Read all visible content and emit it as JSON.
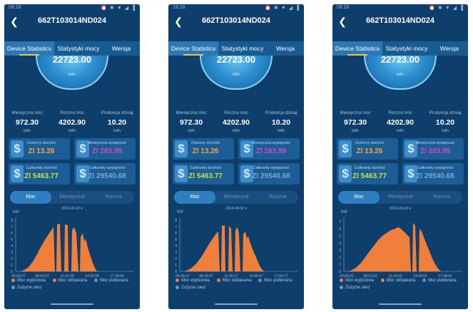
{
  "screens": [
    {
      "status_time": "09:18",
      "status_right": "⏰ ✱ ▼ ◢ ▐",
      "title": "662T103014ND024",
      "tabs": [
        "Device Statistics",
        "Statystyki mocy",
        "Wersja"
      ],
      "gauge": {
        "value": "22723.00",
        "unit": "kWh"
      },
      "stats": [
        {
          "label": "Miesięczna moc",
          "value": "972.30",
          "unit": "kWh"
        },
        {
          "label": "Roczna moc",
          "value": "4202.90",
          "unit": "kWh"
        },
        {
          "label": "Produkcja dzisiaj",
          "value": "10.20",
          "unit": "kWh"
        }
      ],
      "cards": [
        {
          "label": "Dzienny dochód",
          "value": "Zl 13.26"
        },
        {
          "label": "Miesięczna wydajność",
          "value": "Zl 263.99"
        },
        {
          "label": "Całkowity dochód",
          "value": "Zl 5463.77"
        },
        {
          "label": "Całkowity wydajność",
          "value": "Zl 29540.68"
        }
      ],
      "segments": [
        "Moc",
        "Miesięczna",
        "Roczna"
      ],
      "date": "2024-06-02 ▾",
      "chart_unit": "kW",
      "yticks": [
        "0",
        "1",
        "2",
        "3",
        "4",
        "5",
        "6",
        "7",
        "8"
      ],
      "xticks": [
        "05:09:37",
        "08:20:07",
        "11:22:00",
        "14:32:30",
        "17:43:00"
      ],
      "legend": [
        "Moc wyjściowa",
        "Moc oddawana",
        "Moc pobierana",
        "Zużycie sieci"
      ]
    },
    {
      "status_time": "18:18",
      "status_right": "⏰ ✱ ▼ ◢ ▐",
      "title": "662T103014ND024",
      "tabs": [
        "Device Statistics",
        "Statystyki mocy",
        "Wersja"
      ],
      "gauge": {
        "value": "22723.00",
        "unit": "kWh"
      },
      "stats": [
        {
          "label": "Miesięczna moc",
          "value": "972.30",
          "unit": "kWh"
        },
        {
          "label": "Roczna moc",
          "value": "4202.90",
          "unit": "kWh"
        },
        {
          "label": "Produkcja dzisiaj",
          "value": "10.20",
          "unit": "kWh"
        }
      ],
      "cards": [
        {
          "label": "Dzienny dochód",
          "value": "Zl 13.26"
        },
        {
          "label": "Miesięczna wydajność",
          "value": "Zl 263.99"
        },
        {
          "label": "Całkowity dochód",
          "value": "Zl 5463.77"
        },
        {
          "label": "Całkowity wydajność",
          "value": "Zl 29540.68"
        }
      ],
      "segments": [
        "Moc",
        "Miesięczna",
        "Roczna"
      ],
      "date": "2024-06-02 ▾",
      "chart_unit": "kW",
      "yticks": [
        "0",
        "1",
        "2",
        "3",
        "4",
        "5",
        "6",
        "7",
        "8"
      ],
      "xticks": [
        "05:06:47",
        "08:18:47",
        "11:35:17",
        "14:45:47",
        "17:50:17"
      ],
      "legend": [
        "Moc wyjściowa",
        "Moc oddawana",
        "Moc pobierana",
        "Zużycie sieci"
      ]
    },
    {
      "status_time": "09:20",
      "status_right": "⏰ ✱ ▼ ◢ ▐",
      "title": "662T103014ND024",
      "tabs": [
        "Device Statistics",
        "Statystyki mocy",
        "Wersja"
      ],
      "gauge": {
        "value": "22723.00",
        "unit": "kWh"
      },
      "stats": [
        {
          "label": "Miesięczna moc",
          "value": "972.30",
          "unit": "kWh"
        },
        {
          "label": "Roczna moc",
          "value": "4202.90",
          "unit": "kWh"
        },
        {
          "label": "Produkcja dzisiaj",
          "value": "10.20",
          "unit": "kWh"
        }
      ],
      "cards": [
        {
          "label": "Dzienny dochód",
          "value": "Zl 13.26"
        },
        {
          "label": "Miesięczna wydajność",
          "value": "Zl 263.99"
        },
        {
          "label": "Całkowity dochód",
          "value": "Zl 5463.77"
        },
        {
          "label": "Całkowity wydajność",
          "value": "Zl 29540.68"
        }
      ],
      "segments": [
        "Moc",
        "Miesięczna",
        "Roczna"
      ],
      "date": "2024-06-03 ▾",
      "chart_unit": "kW",
      "yticks": [
        "0",
        "1",
        "2",
        "3",
        "4",
        "5",
        "6",
        "7"
      ],
      "xticks": [
        "05:06:02",
        "08:12:02",
        "11:24:02",
        "14:42:02",
        "17:48:02"
      ],
      "legend": [
        "Moc wyjściowa",
        "Moc oddawana",
        "Moc pobierana",
        "Zużycie sieci"
      ]
    }
  ],
  "colors": {
    "background": "#0e3f6c",
    "tab_bar": "#185a92",
    "area": "#f07f3c",
    "card_daily": "#f4a43a",
    "card_monthly": "#d048c8",
    "card_total_income": "#c8e23a",
    "card_total_yield": "#7aa7d4",
    "legend_dots": [
      "#f07f3c",
      "#f07f3c",
      "#7a7fd0",
      "#4aa8e0"
    ]
  }
}
